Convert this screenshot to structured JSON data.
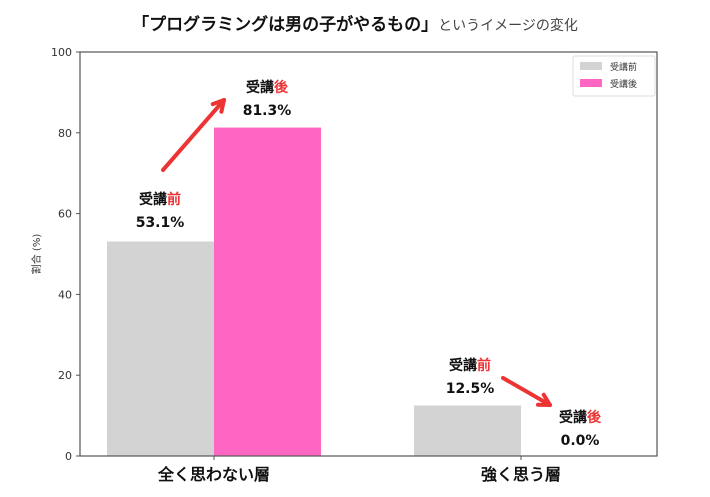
{
  "chart_data": {
    "type": "bar",
    "title_main": "「プログラミングは男の子がやるもの」",
    "title_sub": "というイメージの変化",
    "ylabel": "割合 (%)",
    "xlabel": "",
    "ylim": [
      0,
      100
    ],
    "yticks": [
      0,
      20,
      40,
      60,
      80,
      100
    ],
    "categories": [
      "全く思わない層",
      "強く思う層"
    ],
    "series": [
      {
        "name": "受講前",
        "values": [
          53.1,
          12.5
        ],
        "color": "#d3d3d3"
      },
      {
        "name": "受講後",
        "values": [
          81.3,
          0.0
        ],
        "color": "#ff66c4"
      }
    ],
    "annotations": [
      {
        "prefix": "受講",
        "suffix": "前",
        "value": "53.1%"
      },
      {
        "prefix": "受講",
        "suffix": "後",
        "value": "81.3%"
      },
      {
        "prefix": "受講",
        "suffix": "前",
        "value": "12.5%"
      },
      {
        "prefix": "受講",
        "suffix": "後",
        "value": "0.0%"
      }
    ],
    "arrow_color": "#ee3333",
    "legend_placement": "top-right",
    "grid": false
  }
}
